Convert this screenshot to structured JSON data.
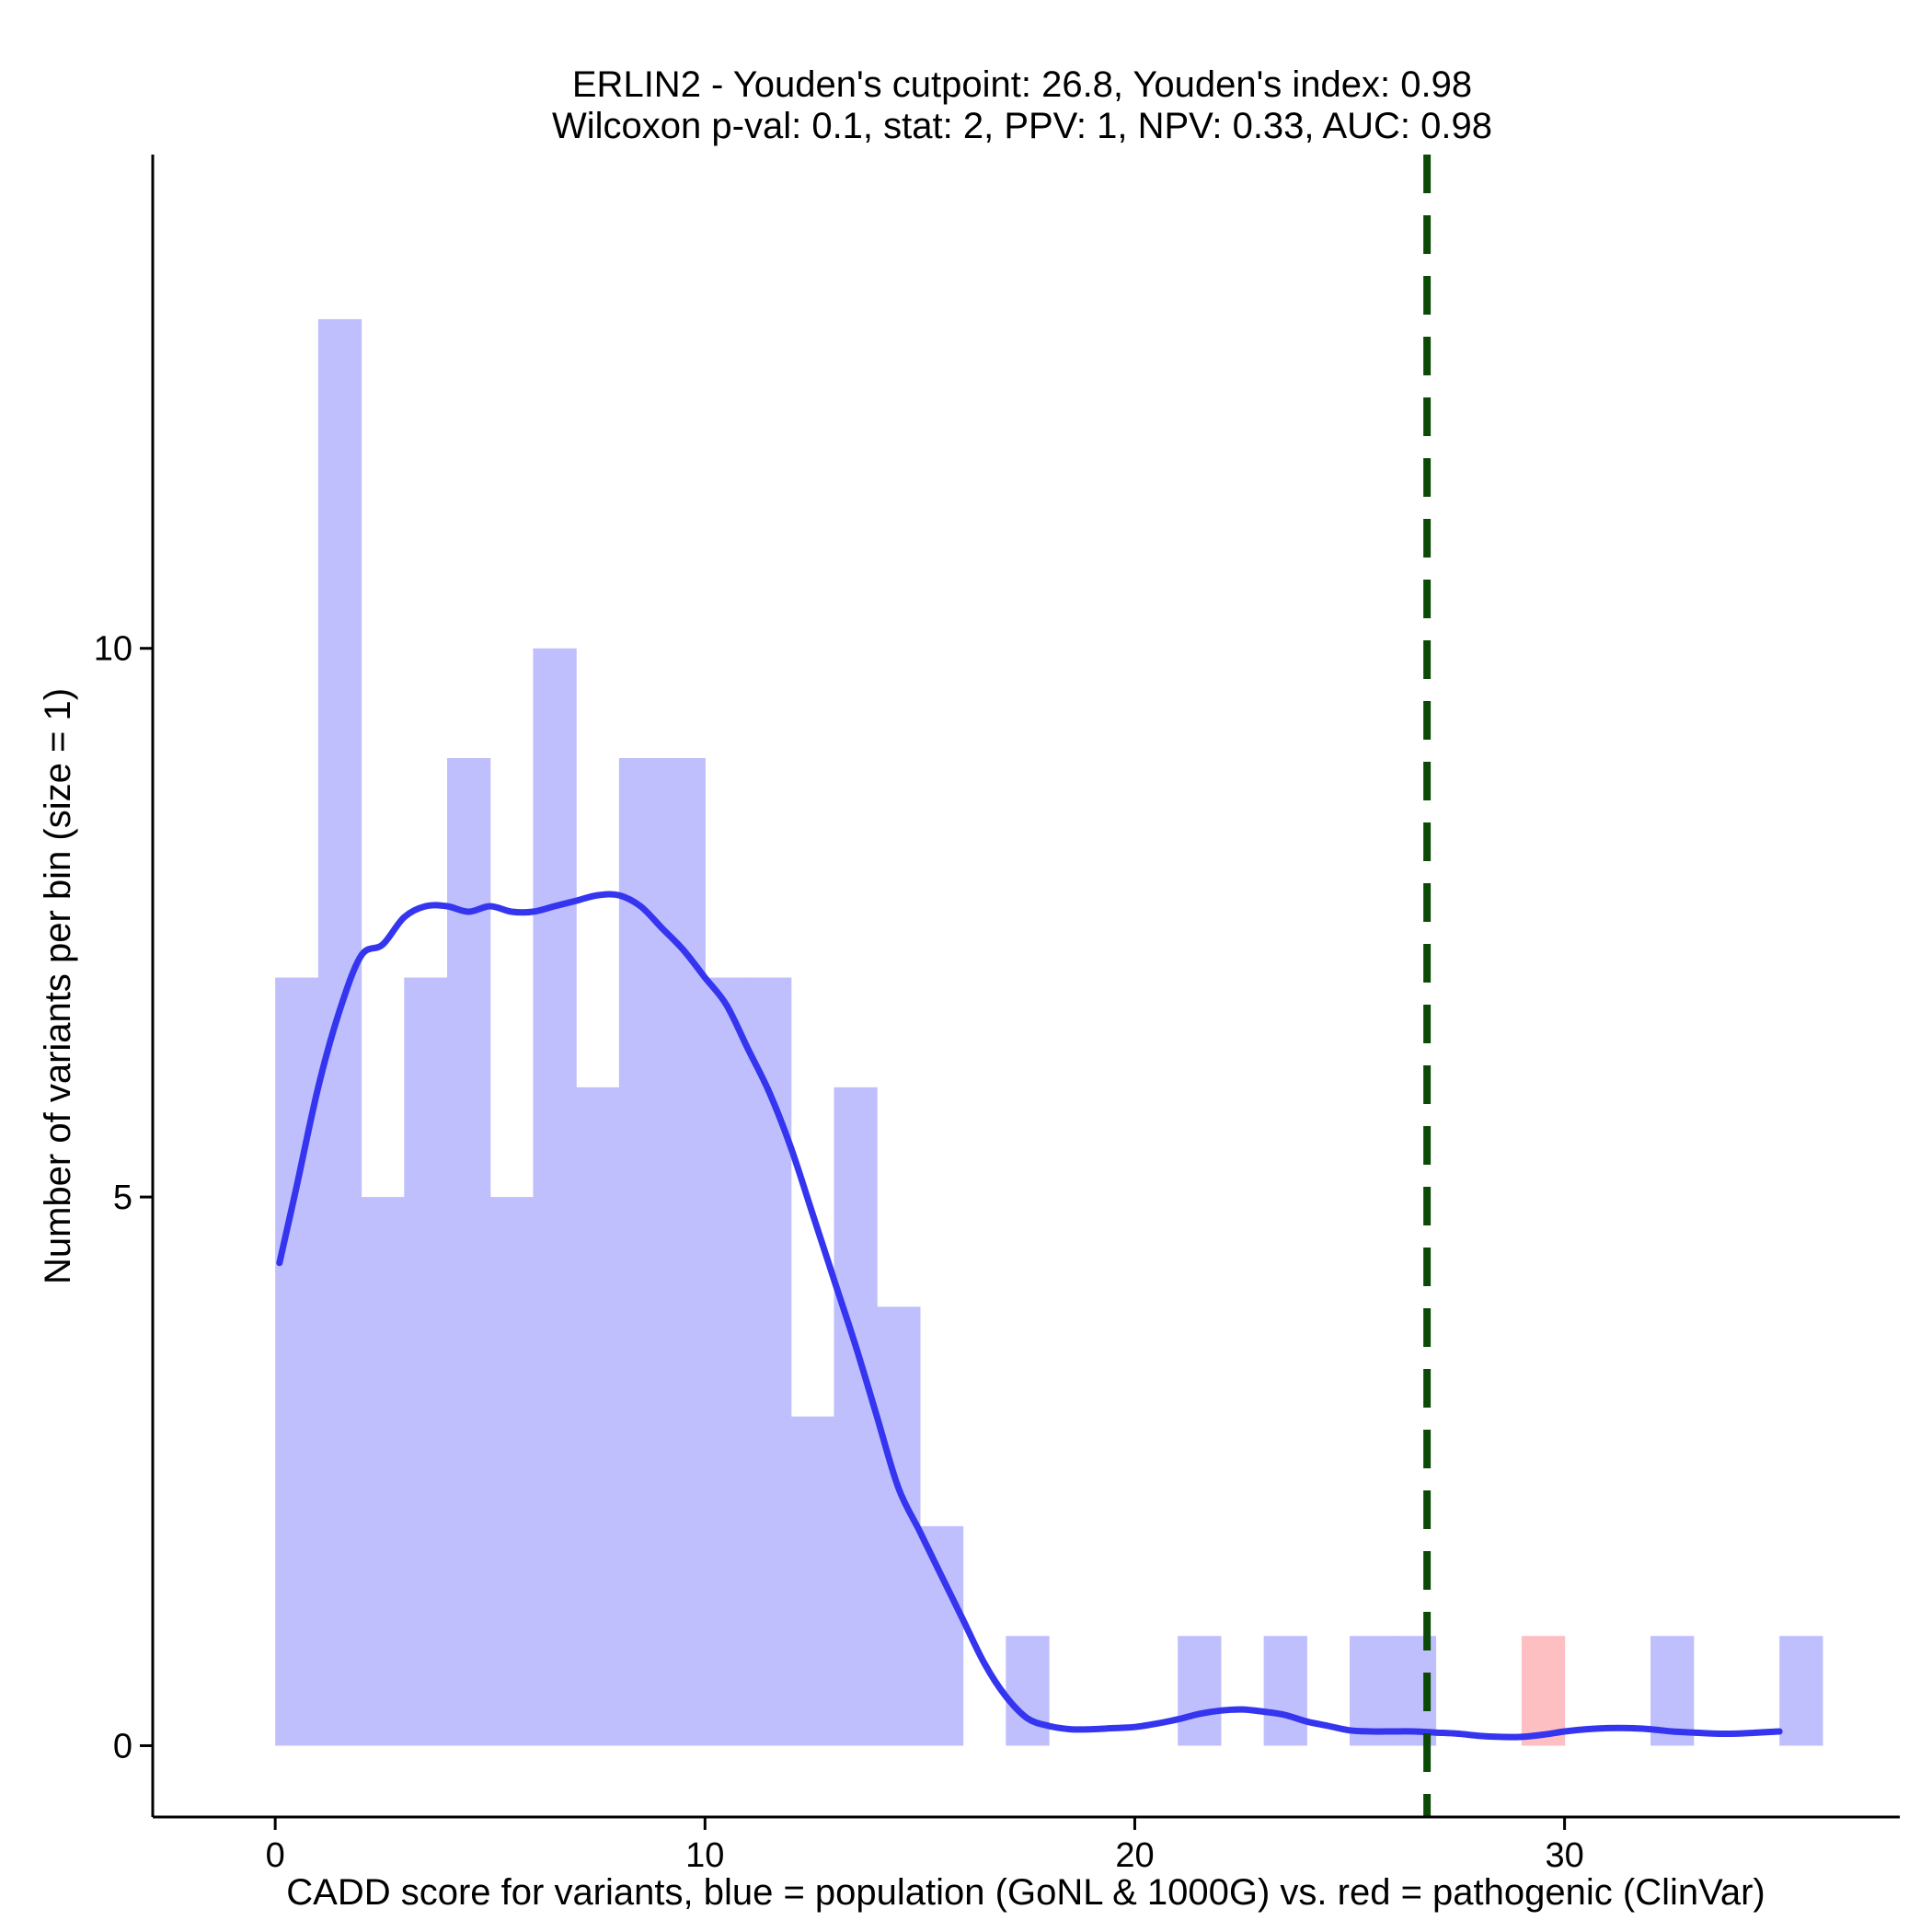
{
  "chart_data": {
    "type": "bar",
    "title": [
      "ERLIN2 - Youden's cutpoint: 26.8, Youden's index: 0.98",
      "Wilcoxon p-val: 0.1, stat: 2, PPV: 1, NPV: 0.33, AUC: 0.98"
    ],
    "xlabel": "CADD score for variants, blue = population (GoNL & 1000G) vs. red = pathogenic (ClinVar)",
    "ylabel": "Number of variants per bin (size = 1)",
    "xlim": [
      -2.85,
      37.8
    ],
    "ylim": [
      -0.65,
      14.5
    ],
    "xticks": [
      0,
      10,
      20,
      30
    ],
    "yticks": [
      0,
      5,
      10
    ],
    "bin_width": 1,
    "series": [
      {
        "name": "blue = population (GoNL & 1000G)",
        "color": "#bfbffd",
        "bins": [
          {
            "x": 0,
            "count": 7
          },
          {
            "x": 1,
            "count": 13
          },
          {
            "x": 2,
            "count": 5
          },
          {
            "x": 3,
            "count": 7
          },
          {
            "x": 4,
            "count": 9
          },
          {
            "x": 5,
            "count": 5
          },
          {
            "x": 6,
            "count": 10
          },
          {
            "x": 7,
            "count": 6
          },
          {
            "x": 8,
            "count": 9
          },
          {
            "x": 9,
            "count": 9
          },
          {
            "x": 10,
            "count": 7
          },
          {
            "x": 11,
            "count": 7
          },
          {
            "x": 12,
            "count": 3
          },
          {
            "x": 13,
            "count": 6
          },
          {
            "x": 14,
            "count": 4
          },
          {
            "x": 15,
            "count": 2
          },
          {
            "x": 17,
            "count": 1
          },
          {
            "x": 21,
            "count": 1
          },
          {
            "x": 23,
            "count": 1
          },
          {
            "x": 25,
            "count": 1
          },
          {
            "x": 26,
            "count": 1
          },
          {
            "x": 32,
            "count": 1
          },
          {
            "x": 35,
            "count": 1
          }
        ]
      },
      {
        "name": "red = pathogenic (ClinVar)",
        "color": "#fdbfc2",
        "bins": [
          {
            "x": 29,
            "count": 1
          }
        ]
      }
    ],
    "density": {
      "color": "#3535f0",
      "x": [
        0.1,
        0.5,
        1.0,
        1.5,
        2.0,
        2.5,
        3.0,
        3.5,
        4.0,
        4.5,
        5.0,
        5.5,
        6.0,
        6.5,
        7.0,
        7.5,
        8.0,
        8.5,
        9.0,
        9.5,
        10.0,
        10.5,
        11.0,
        11.5,
        12.0,
        12.5,
        13.0,
        13.5,
        14.0,
        14.5,
        15.0,
        15.5,
        16.0,
        16.5,
        17.0,
        17.5,
        18.0,
        18.5,
        19.0,
        19.5,
        20.0,
        20.5,
        21.0,
        21.5,
        22.0,
        22.5,
        23.0,
        23.5,
        24.0,
        24.5,
        25.0,
        25.5,
        26.0,
        26.5,
        27.0,
        27.5,
        28.0,
        28.5,
        29.0,
        29.5,
        30.0,
        30.5,
        31.0,
        31.5,
        32.0,
        32.5,
        33.0,
        33.5,
        34.0,
        34.5,
        35.0
      ],
      "y": [
        4.4,
        5.1,
        6.0,
        6.7,
        7.2,
        7.3,
        7.55,
        7.65,
        7.65,
        7.6,
        7.65,
        7.6,
        7.6,
        7.65,
        7.7,
        7.75,
        7.75,
        7.65,
        7.45,
        7.25,
        7.0,
        6.75,
        6.35,
        5.95,
        5.45,
        4.85,
        4.25,
        3.65,
        3.0,
        2.35,
        1.95,
        1.55,
        1.15,
        0.75,
        0.45,
        0.25,
        0.18,
        0.15,
        0.15,
        0.16,
        0.17,
        0.2,
        0.24,
        0.29,
        0.32,
        0.33,
        0.31,
        0.28,
        0.22,
        0.18,
        0.14,
        0.13,
        0.13,
        0.13,
        0.12,
        0.11,
        0.09,
        0.08,
        0.08,
        0.1,
        0.13,
        0.15,
        0.16,
        0.16,
        0.15,
        0.13,
        0.12,
        0.11,
        0.11,
        0.12,
        0.13
      ]
    },
    "cutpoint": {
      "x": 26.8,
      "color": "#0b4a06",
      "style": "dashed"
    },
    "grid": false,
    "legend": "none"
  }
}
